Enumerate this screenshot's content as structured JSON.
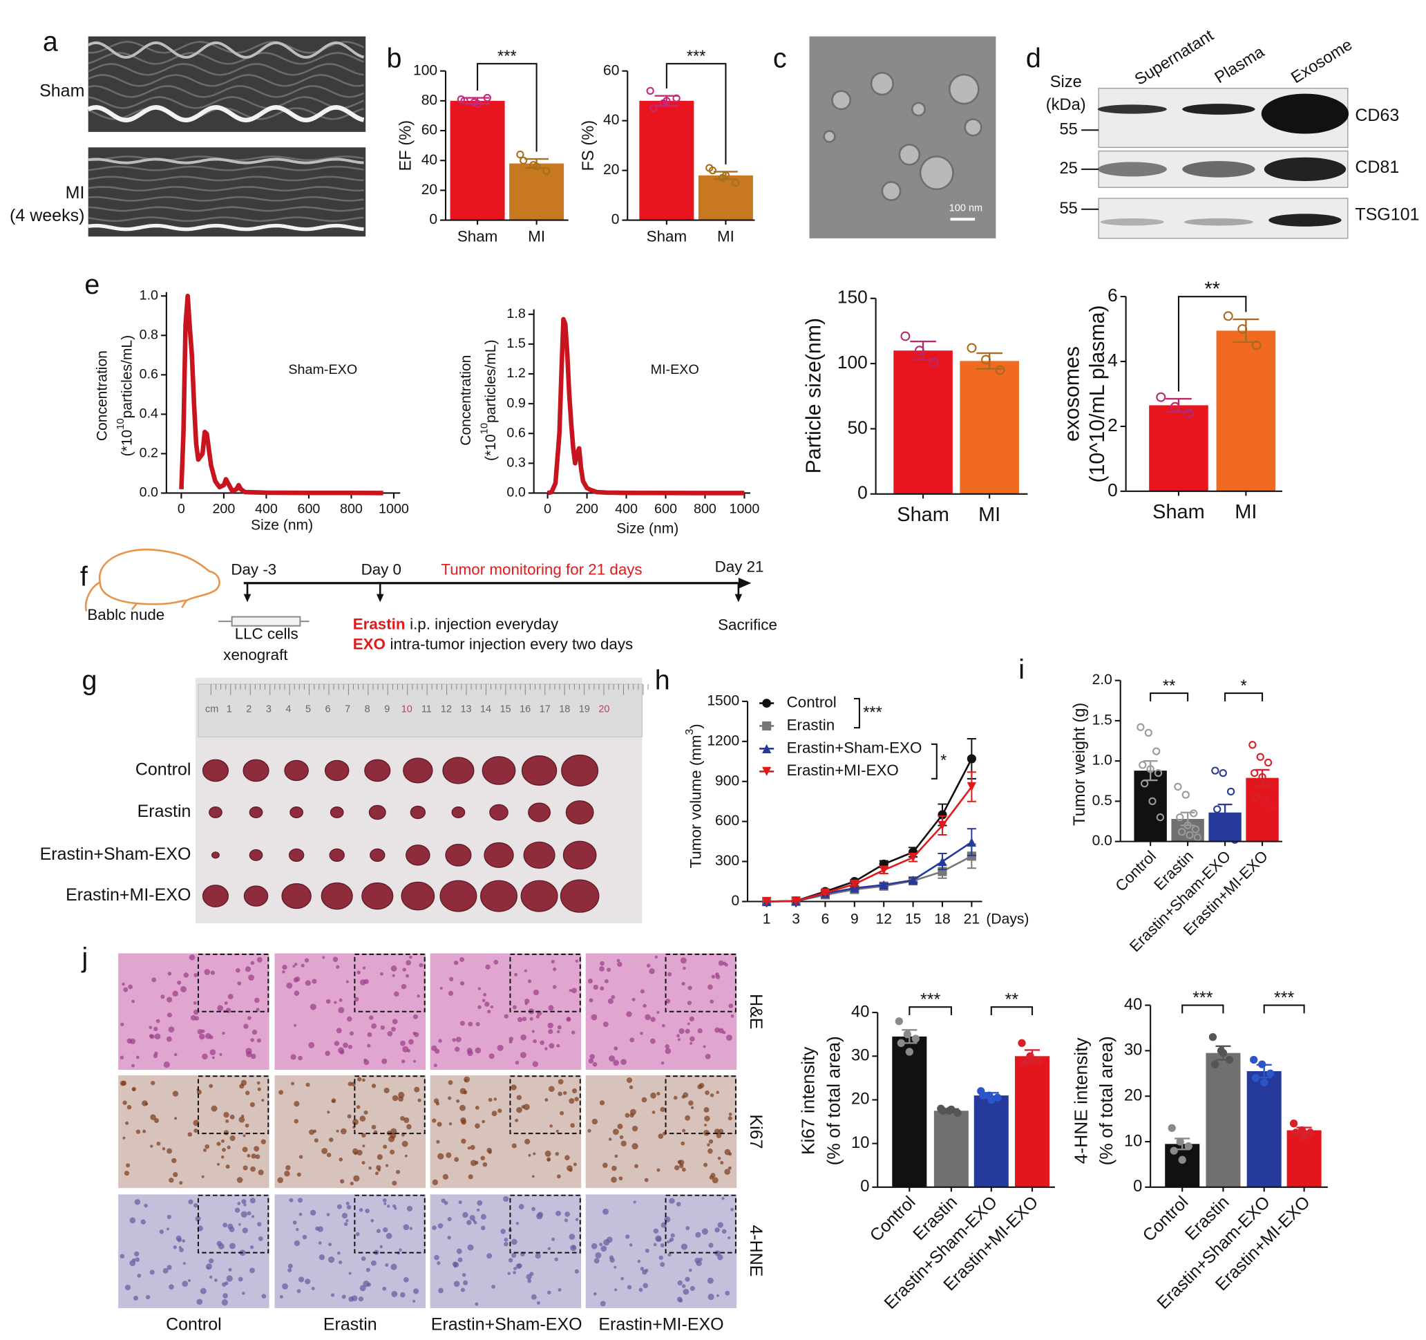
{
  "panel_labels": [
    "a",
    "b",
    "c",
    "d",
    "e",
    "f",
    "g",
    "h",
    "i",
    "j"
  ],
  "echo": {
    "labels": [
      "Sham",
      "MI",
      "(4 weeks)"
    ]
  },
  "tem": {
    "scale_bar": "100 nm"
  },
  "western": {
    "size_label": [
      "Size",
      "(kDa)"
    ],
    "lanes": [
      "Supernatant",
      "Plasma",
      "Exosome"
    ],
    "markers": [
      "55",
      "25",
      "55"
    ],
    "proteins": [
      "CD63",
      "CD81",
      "TSG101"
    ]
  },
  "schematic": {
    "animal": "Bablc nude",
    "days": [
      "Day -3",
      "Day 0",
      "Day 21"
    ],
    "monitoring": "Tumor monitoring for 21 days",
    "cells": [
      "LLC cells",
      "xenograft"
    ],
    "treatments": [
      {
        "drug": "Erastin",
        "text": "i.p. injection everyday"
      },
      {
        "drug": "EXO",
        "text": "intra-tumor injection every two days"
      }
    ],
    "end": "Sacrifice"
  },
  "photo": {
    "ruler": [
      "cm",
      "1",
      "2",
      "3",
      "4",
      "5",
      "6",
      "7",
      "8",
      "9",
      "10",
      "11",
      "12",
      "13",
      "14",
      "15",
      "16",
      "17",
      "18",
      "19",
      "20"
    ],
    "rows": [
      "Control",
      "Erastin",
      "Erastin+Sham-EXO",
      "Erastin+MI-EXO"
    ]
  },
  "histology": {
    "columns": [
      "Control",
      "Erastin",
      "Erastin+Sham-EXO",
      "Erastin+MI-EXO"
    ],
    "rows": [
      "H&E",
      "Ki67",
      "4-HNE"
    ]
  },
  "chart_data": [
    {
      "type": "bar",
      "ylabel": "EF (%)",
      "categories": [
        "Sham",
        "MI"
      ],
      "values": [
        80,
        38
      ],
      "errors": [
        2,
        3
      ],
      "points": [
        [
          81,
          79,
          82,
          80,
          78
        ],
        [
          44,
          37,
          33,
          40,
          36
        ]
      ],
      "colors": [
        "#e8141e",
        "#c8781e"
      ],
      "point_colors": [
        "#c8287a",
        "#a8701e"
      ],
      "point_style": "open",
      "ylim": [
        0,
        100
      ],
      "yticks": [
        0,
        20,
        40,
        60,
        80,
        100
      ],
      "significance": [
        "***"
      ]
    },
    {
      "type": "bar",
      "ylabel": "FS (%)",
      "categories": [
        "Sham",
        "MI"
      ],
      "values": [
        48,
        18
      ],
      "errors": [
        2,
        1.5
      ],
      "points": [
        [
          52,
          47,
          49,
          45,
          48
        ],
        [
          21,
          17,
          15,
          20,
          18
        ]
      ],
      "colors": [
        "#e8141e",
        "#c8781e"
      ],
      "point_colors": [
        "#c8287a",
        "#a8701e"
      ],
      "point_style": "open",
      "ylim": [
        0,
        60
      ],
      "yticks": [
        0,
        20,
        40,
        60
      ],
      "significance": [
        "***"
      ]
    },
    {
      "type": "line",
      "x": [
        0,
        10,
        20,
        30,
        40,
        50,
        60,
        70,
        80,
        100,
        110,
        120,
        140,
        160,
        180,
        200,
        210,
        220,
        240,
        260,
        270,
        280,
        300,
        400,
        600,
        800,
        950
      ],
      "values": [
        0.02,
        0.3,
        0.85,
        1.0,
        0.84,
        0.7,
        0.45,
        0.25,
        0.17,
        0.2,
        0.31,
        0.3,
        0.14,
        0.06,
        0.03,
        0.04,
        0.07,
        0.05,
        0.01,
        0.02,
        0.04,
        0.02,
        0.005,
        0.002,
        0.001,
        0.001,
        0
      ],
      "color": "#c8141e",
      "xlim": [
        -70,
        1030
      ],
      "xticks": [
        0,
        200,
        400,
        600,
        800,
        1000
      ],
      "ylim": [
        0,
        1.02
      ],
      "yticks": [
        {
          "value": 0,
          "label": "0.0"
        },
        0.2,
        0.4,
        0.6,
        0.8,
        {
          "value": 1,
          "label": "1.0"
        }
      ],
      "ylabel": [
        "Concentration",
        [
          "(*10",
          "10",
          "particles/mL)"
        ]
      ],
      "xlabel": "Size (nm)",
      "annotation": "Sham-EXO"
    },
    {
      "type": "line",
      "x": [
        0,
        20,
        40,
        60,
        70,
        80,
        90,
        100,
        110,
        120,
        130,
        140,
        150,
        160,
        170,
        180,
        200,
        220,
        250,
        300,
        400,
        600,
        800,
        1000
      ],
      "values": [
        0,
        0.01,
        0.1,
        0.6,
        1.2,
        1.75,
        1.7,
        1.4,
        1.0,
        0.7,
        0.45,
        0.3,
        0.4,
        0.45,
        0.25,
        0.12,
        0.05,
        0.03,
        0.01,
        0.005,
        0.002,
        0.001,
        0,
        0
      ],
      "color": "#c8141e",
      "xlim": [
        -70,
        1030
      ],
      "xticks": [
        0,
        200,
        400,
        600,
        800,
        1000
      ],
      "ylim": [
        0,
        1.85
      ],
      "yticks": [
        {
          "value": 0,
          "label": "0.0"
        },
        0.3,
        0.6,
        0.9,
        1.2,
        1.5,
        1.8
      ],
      "ylabel": [
        "Concentration",
        [
          "(*10",
          "10",
          "particles/mL)"
        ]
      ],
      "xlabel": "Size (nm)",
      "annotation": "MI-EXO"
    },
    {
      "type": "bar",
      "ylabel": "Particle size(nm)",
      "categories": [
        "Sham",
        "MI"
      ],
      "values": [
        110,
        102
      ],
      "errors": [
        7,
        6
      ],
      "points": [
        [
          121,
          110,
          101
        ],
        [
          112,
          103,
          95
        ]
      ],
      "colors": [
        "#e8141e",
        "#f06a1f"
      ],
      "point_colors": [
        "#b8286a",
        "#a86a20"
      ],
      "point_style": "open",
      "ylim": [
        0,
        150
      ],
      "yticks": [
        0,
        50,
        100,
        150
      ]
    },
    {
      "type": "bar",
      "ylabel": [
        "exosomes",
        "(10^10/mL plasma)"
      ],
      "categories": [
        "Sham",
        "MI"
      ],
      "values": [
        2.65,
        4.95
      ],
      "errors": [
        0.2,
        0.35
      ],
      "points": [
        [
          2.9,
          2.6,
          2.4
        ],
        [
          5.4,
          5.0,
          4.5
        ]
      ],
      "colors": [
        "#e8141e",
        "#f06a1f"
      ],
      "point_colors": [
        "#b8286a",
        "#a86a20"
      ],
      "point_style": "open",
      "ylim": [
        0,
        6
      ],
      "yticks": [
        0,
        2,
        4,
        6
      ],
      "significance": [
        "**"
      ]
    },
    {
      "type": "line",
      "categories": [
        "1",
        "3",
        "6",
        "9",
        "12",
        "15",
        "18",
        "21"
      ],
      "xlabel": "(Days)",
      "ylabel": [
        [
          "Tumor volume (mm",
          "3",
          ")"
        ]
      ],
      "ylim": [
        0,
        1500
      ],
      "yticks": [
        0,
        300,
        600,
        900,
        1200,
        1500
      ],
      "series": [
        {
          "name": "Control",
          "color": "#111111",
          "marker": "circle",
          "values": [
            0,
            5,
            75,
            150,
            280,
            370,
            650,
            1070
          ],
          "errors": [
            0,
            0,
            10,
            12,
            25,
            35,
            80,
            150
          ]
        },
        {
          "name": "Erastin",
          "color": "#777777",
          "marker": "square",
          "values": [
            0,
            2,
            50,
            90,
            115,
            155,
            225,
            340
          ],
          "errors": [
            0,
            0,
            8,
            10,
            12,
            15,
            50,
            90
          ]
        },
        {
          "name": "Erastin+Sham-EXO",
          "color": "#263a99",
          "marker": "triangle-up",
          "values": [
            0,
            3,
            60,
            100,
            125,
            160,
            300,
            445
          ],
          "errors": [
            0,
            0,
            8,
            10,
            12,
            18,
            60,
            100
          ]
        },
        {
          "name": "Erastin+MI-EXO",
          "color": "#e01a1a",
          "marker": "triangle-down",
          "values": [
            0,
            4,
            65,
            130,
            235,
            330,
            570,
            860
          ],
          "errors": [
            0,
            0,
            10,
            12,
            25,
            30,
            70,
            110
          ]
        }
      ],
      "significance": [
        "***",
        "*"
      ]
    },
    {
      "type": "bar",
      "ylabel": "Tumor weight (g)",
      "categories": [
        "Control",
        "Erastin",
        "Erastin+Sham-EXO",
        "Erastin+MI-EXO"
      ],
      "values": [
        0.88,
        0.28,
        0.36,
        0.79
      ],
      "errors": [
        0.12,
        0.08,
        0.1,
        0.1
      ],
      "points": [
        [
          1.42,
          1.35,
          1.12,
          0.95,
          0.9,
          0.85,
          0.72,
          0.5,
          0.3
        ],
        [
          0.68,
          0.58,
          0.35,
          0.3,
          0.2,
          0.15,
          0.12,
          0.08,
          0.05
        ],
        [
          0.88,
          0.85,
          0.62,
          0.4,
          0.2,
          0.15,
          0.1,
          0.05,
          0.02
        ],
        [
          1.2,
          1.05,
          0.98,
          0.85,
          0.8,
          0.7,
          0.55,
          0.5,
          0.45
        ]
      ],
      "colors": [
        "#111111",
        "#707070",
        "#253a9a",
        "#e3161e"
      ],
      "point_colors": [
        "#9a9a9a",
        "#9a9a9a",
        "#2b3a99",
        "#d8202a"
      ],
      "point_style": "open",
      "ylim": [
        0,
        2
      ],
      "yticks": [
        {
          "value": 0,
          "label": "0.0"
        },
        0.5,
        {
          "value": 1,
          "label": "1.0"
        },
        1.5,
        {
          "value": 2,
          "label": "2.0"
        }
      ],
      "significance": [
        "**",
        "*"
      ]
    },
    {
      "type": "bar",
      "ylabel": [
        "Ki67 intensity",
        "(% of total area)"
      ],
      "categories": [
        "Control",
        "Erastin",
        "Erastin+Sham-EXO",
        "Erastin+MI-EXO"
      ],
      "values": [
        34.5,
        17.5,
        21,
        30
      ],
      "errors": [
        1.5,
        0.4,
        0.6,
        1.4
      ],
      "points": [
        [
          38,
          35,
          34,
          33,
          31
        ],
        [
          18,
          17.5,
          17,
          17.5,
          17.8
        ],
        [
          22,
          21,
          20.5,
          21,
          20
        ],
        [
          33,
          30,
          29,
          28.5,
          29
        ]
      ],
      "colors": [
        "#111111",
        "#707070",
        "#253a9a",
        "#e3161e"
      ],
      "point_colors": [
        "#8a8a8a",
        "#555555",
        "#2b55c8",
        "#d8202a"
      ],
      "point_style": "filled",
      "ylim": [
        0,
        40
      ],
      "yticks": [
        0,
        10,
        20,
        30,
        40
      ],
      "significance": [
        "***",
        "**"
      ]
    },
    {
      "type": "bar",
      "ylabel": [
        "4-HNE intensity",
        "(% of total area)"
      ],
      "categories": [
        "Control",
        "Erastin",
        "Erastin+Sham-EXO",
        "Erastin+MI-EXO"
      ],
      "values": [
        9.5,
        29.5,
        25.5,
        12.5
      ],
      "errors": [
        1.2,
        1.5,
        1.4,
        0.6
      ],
      "points": [
        [
          13,
          10,
          9,
          8,
          6
        ],
        [
          33,
          30,
          28,
          27,
          29.5
        ],
        [
          28,
          27,
          25,
          24,
          23
        ],
        [
          14,
          12.5,
          12,
          12,
          11
        ]
      ],
      "colors": [
        "#111111",
        "#707070",
        "#253a9a",
        "#e3161e"
      ],
      "point_colors": [
        "#8a8a8a",
        "#555555",
        "#2b55c8",
        "#d8202a"
      ],
      "point_style": "filled",
      "ylim": [
        0,
        40
      ],
      "yticks": [
        0,
        10,
        20,
        30,
        40
      ],
      "significance": [
        "***",
        "***"
      ]
    }
  ]
}
